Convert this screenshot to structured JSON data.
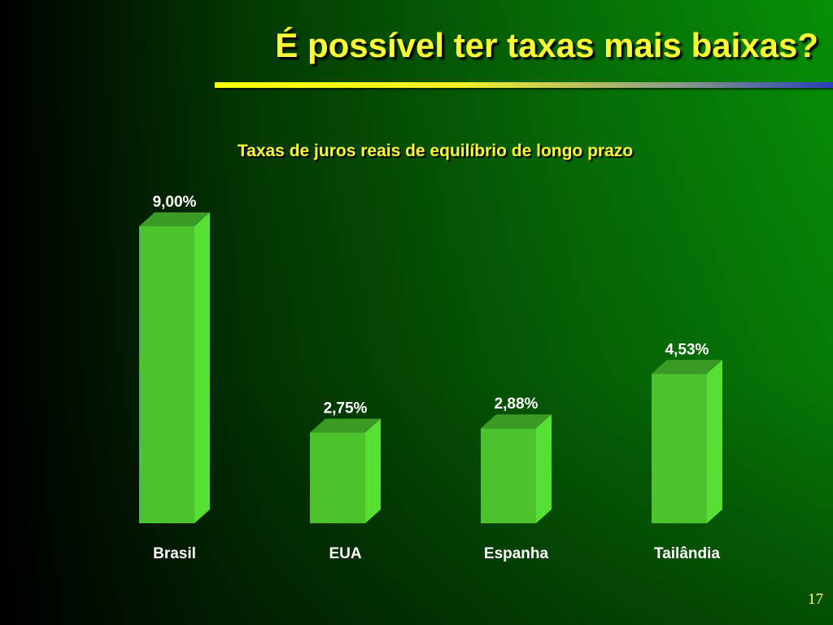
{
  "slide": {
    "title": "É possível ter taxas mais baixas?",
    "page_number": "17"
  },
  "colors": {
    "bar_front": "#4cc22c",
    "bar_top": "#3a9a24",
    "bar_side": "#56e033",
    "title": "#ffff33"
  },
  "chart_data": {
    "type": "bar",
    "title": "Taxas de juros reais de equilíbrio de longo prazo",
    "categories": [
      "Brasil",
      "EUA",
      "Espanha",
      "Tailândia"
    ],
    "values": [
      9.0,
      2.75,
      2.88,
      4.53
    ],
    "value_labels": [
      "9,00%",
      "2,75%",
      "2,88%",
      "4,53%"
    ],
    "ylim": [
      0,
      9
    ],
    "xlabel": "",
    "ylabel": "",
    "grid": false,
    "legend": "none"
  }
}
